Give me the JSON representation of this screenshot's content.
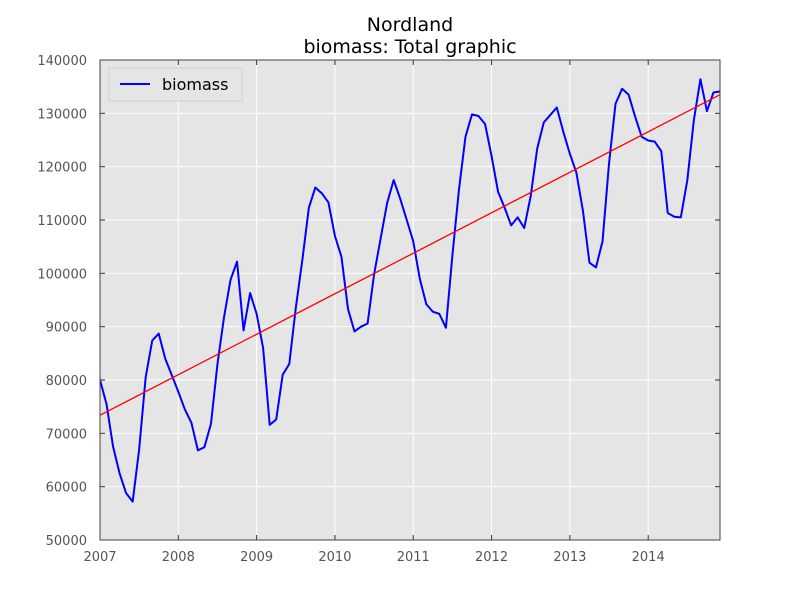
{
  "chart_data": {
    "type": "line",
    "title_line1": "Nordland",
    "title_line2": "biomass: Total graphic",
    "xlabel": "",
    "ylabel": "",
    "xlim": [
      2007.0,
      2014.917
    ],
    "ylim": [
      50000,
      140000
    ],
    "x_ticks": [
      2007,
      2008,
      2009,
      2010,
      2011,
      2012,
      2013,
      2014
    ],
    "x_tick_labels": [
      "2007",
      "2008",
      "2009",
      "2010",
      "2011",
      "2012",
      "2013",
      "2014"
    ],
    "y_ticks": [
      50000,
      60000,
      70000,
      80000,
      90000,
      100000,
      110000,
      120000,
      130000,
      140000
    ],
    "y_tick_labels": [
      "50000",
      "60000",
      "70000",
      "80000",
      "90000",
      "100000",
      "110000",
      "120000",
      "130000",
      "140000"
    ],
    "grid": true,
    "legend": {
      "position": "top-left",
      "entries": [
        "biomass"
      ]
    },
    "colors": {
      "background": "#e5e5e5",
      "series": "#0000ff",
      "trend": "#ff0000",
      "grid": "#ffffff",
      "text": "#555555",
      "title": "#000000"
    },
    "series": [
      {
        "name": "biomass",
        "x": [
          2007.0,
          2007.083,
          2007.167,
          2007.25,
          2007.333,
          2007.417,
          2007.5,
          2007.583,
          2007.667,
          2007.75,
          2007.833,
          2007.917,
          2008.0,
          2008.083,
          2008.167,
          2008.25,
          2008.333,
          2008.417,
          2008.5,
          2008.583,
          2008.667,
          2008.75,
          2008.833,
          2008.917,
          2009.0,
          2009.083,
          2009.167,
          2009.25,
          2009.333,
          2009.417,
          2009.5,
          2009.583,
          2009.667,
          2009.75,
          2009.833,
          2009.917,
          2010.0,
          2010.083,
          2010.167,
          2010.25,
          2010.333,
          2010.417,
          2010.5,
          2010.583,
          2010.667,
          2010.75,
          2010.833,
          2010.917,
          2011.0,
          2011.083,
          2011.167,
          2011.25,
          2011.333,
          2011.417,
          2011.5,
          2011.583,
          2011.667,
          2011.75,
          2011.833,
          2011.917,
          2012.0,
          2012.083,
          2012.167,
          2012.25,
          2012.333,
          2012.417,
          2012.5,
          2012.583,
          2012.667,
          2012.75,
          2012.833,
          2012.917,
          2013.0,
          2013.083,
          2013.167,
          2013.25,
          2013.333,
          2013.417,
          2013.5,
          2013.583,
          2013.667,
          2013.75,
          2013.833,
          2013.917,
          2014.0,
          2014.083,
          2014.167,
          2014.25,
          2014.333,
          2014.417,
          2014.5,
          2014.583,
          2014.667,
          2014.75,
          2014.833,
          2014.917
        ],
        "y": [
          80000,
          75500,
          67500,
          62500,
          58800,
          57200,
          67000,
          80500,
          87400,
          88700,
          84000,
          80900,
          77800,
          74500,
          72000,
          66800,
          67400,
          71800,
          83000,
          91700,
          98800,
          102200,
          89300,
          96300,
          92400,
          86000,
          71600,
          72600,
          81000,
          83000,
          93500,
          102400,
          112300,
          116100,
          115000,
          113300,
          107000,
          103100,
          93300,
          89100,
          90000,
          90600,
          99800,
          106500,
          113200,
          117500,
          114000,
          110000,
          106000,
          99000,
          94200,
          92800,
          92400,
          89800,
          103400,
          115600,
          125600,
          129800,
          129500,
          128000,
          122000,
          115300,
          112300,
          109000,
          110500,
          108500,
          114500,
          123400,
          128300,
          129700,
          131100,
          126500,
          122400,
          118900,
          111700,
          102000,
          101100,
          106000,
          120600,
          131800,
          134600,
          133500,
          129400,
          125600,
          124900,
          124700,
          122900,
          111300,
          110600,
          110500,
          117500,
          128700,
          136400,
          130400,
          133900,
          134100
        ]
      },
      {
        "name": "trend",
        "x": [
          2007.0,
          2014.917
        ],
        "y": [
          73400,
          133500
        ]
      }
    ]
  }
}
